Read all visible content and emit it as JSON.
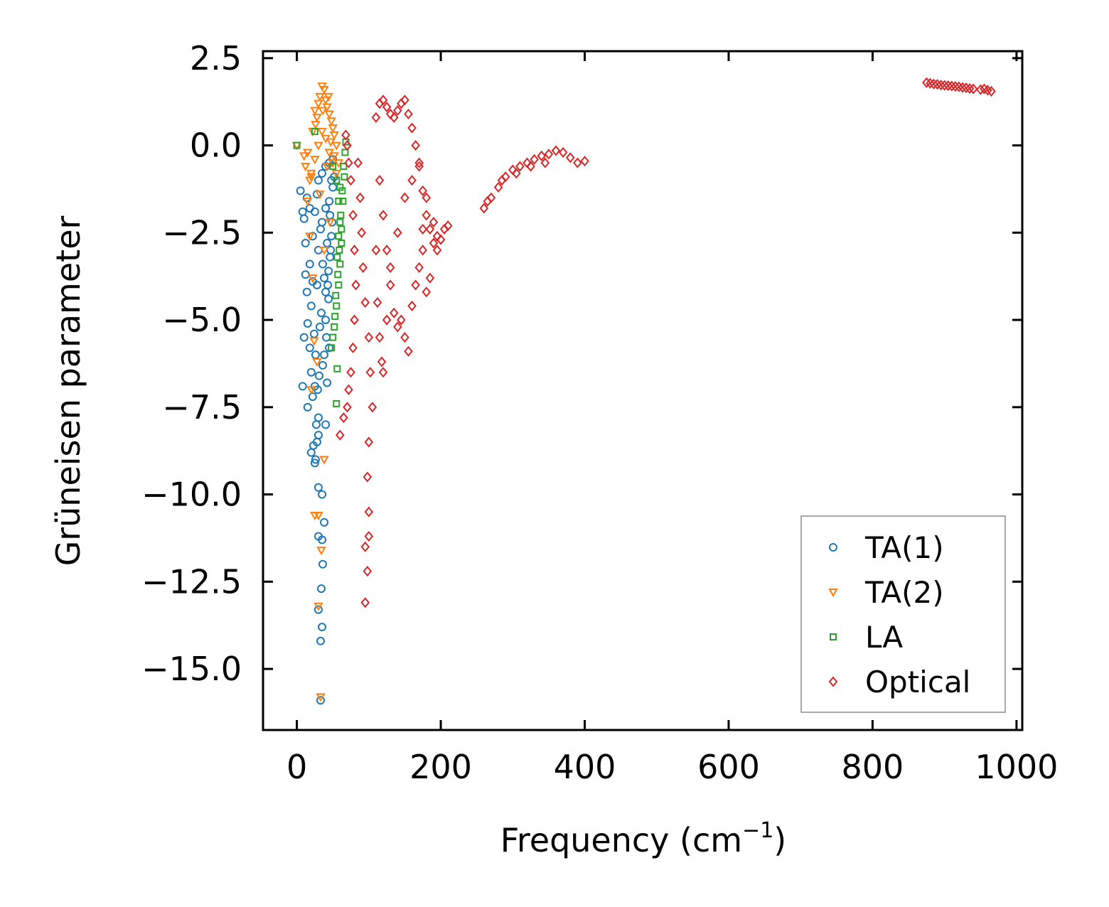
{
  "chart_data": {
    "type": "scatter",
    "title": "",
    "xlabel": "Frequency (cm",
    "xlabel_sup": "−1",
    "xlabel_end": ")",
    "ylabel": "Grüneisen parameter",
    "xlim": [
      -47,
      1008
    ],
    "ylim": [
      -16.75,
      2.7
    ],
    "xticks": [
      0,
      200,
      400,
      600,
      800,
      1000
    ],
    "xtick_labels": [
      "0",
      "200",
      "400",
      "600",
      "800",
      "1000"
    ],
    "yticks": [
      2.5,
      0,
      -2.5,
      -5,
      -7.5,
      -10,
      -12.5,
      -15
    ],
    "ytick_labels": [
      "2.5",
      "0.0",
      "−2.5",
      "−5.0",
      "−7.5",
      "−10.0",
      "−12.5",
      "−15.0"
    ],
    "legend_position": "lower-right",
    "series": [
      {
        "name": "TA(1)",
        "marker": "circle",
        "color": "#1f77b4",
        "points": [
          [
            5,
            -1.3
          ],
          [
            8,
            -1.9
          ],
          [
            10,
            -2.1
          ],
          [
            12,
            -2.8
          ],
          [
            12,
            -3.7
          ],
          [
            14,
            -4.2
          ],
          [
            15,
            -5.1
          ],
          [
            10,
            -5.5
          ],
          [
            8,
            -6.9
          ],
          [
            18,
            -5.8
          ],
          [
            20,
            -6.5
          ],
          [
            15,
            -7.5
          ],
          [
            22,
            -7.2
          ],
          [
            20,
            -8.8
          ],
          [
            25,
            -9.1
          ],
          [
            28,
            -8.5
          ],
          [
            30,
            -9.8
          ],
          [
            35,
            -10.0
          ],
          [
            38,
            -10.8
          ],
          [
            30,
            -11.2
          ],
          [
            35,
            -11.3
          ],
          [
            36,
            -12.0
          ],
          [
            34,
            -12.7
          ],
          [
            30,
            -13.3
          ],
          [
            35,
            -13.8
          ],
          [
            33,
            -14.2
          ],
          [
            33,
            -15.9
          ],
          [
            40,
            -8.0
          ],
          [
            30,
            -8.3
          ],
          [
            25,
            -6.9
          ],
          [
            20,
            -4.6
          ],
          [
            18,
            -3.4
          ],
          [
            22,
            -2.6
          ],
          [
            25,
            -1.9
          ],
          [
            28,
            -1.4
          ],
          [
            30,
            -1.0
          ],
          [
            35,
            -0.8
          ],
          [
            40,
            -0.6
          ],
          [
            45,
            -0.5
          ],
          [
            50,
            -0.4
          ],
          [
            30,
            -3.0
          ],
          [
            35,
            -2.2
          ],
          [
            40,
            -1.8
          ],
          [
            42,
            -2.8
          ],
          [
            45,
            -1.6
          ],
          [
            38,
            -3.8
          ],
          [
            32,
            -5.2
          ],
          [
            28,
            -4.0
          ],
          [
            26,
            -6.0
          ],
          [
            24,
            -5.4
          ],
          [
            36,
            -6.3
          ],
          [
            40,
            -5.0
          ],
          [
            44,
            -4.4
          ],
          [
            46,
            -3.2
          ],
          [
            48,
            -2.6
          ],
          [
            34,
            -4.8
          ],
          [
            22,
            -3.9
          ],
          [
            18,
            -1.8
          ],
          [
            14,
            -1.5
          ],
          [
            42,
            -6.8
          ],
          [
            30,
            -7.8
          ],
          [
            27,
            -8.0
          ],
          [
            45,
            -5.8
          ],
          [
            50,
            -1.2
          ],
          [
            52,
            -0.9
          ],
          [
            48,
            -1.0
          ],
          [
            46,
            -2.0
          ],
          [
            44,
            -3.6
          ],
          [
            40,
            -4.2
          ],
          [
            36,
            -3.4
          ],
          [
            33,
            -2.4
          ],
          [
            31,
            -6.6
          ],
          [
            29,
            -7.0
          ],
          [
            23,
            -8.6
          ],
          [
            26,
            -9.0
          ],
          [
            38,
            -6.0
          ],
          [
            41,
            -5.5
          ],
          [
            43,
            -4.0
          ],
          [
            47,
            -3.0
          ],
          [
            49,
            -2.2
          ]
        ]
      },
      {
        "name": "TA(2)",
        "marker": "triangle-down",
        "color": "#ff7f0e",
        "points": [
          [
            0,
            0.0
          ],
          [
            10,
            -0.3
          ],
          [
            12,
            -0.6
          ],
          [
            15,
            -0.2
          ],
          [
            18,
            -1.0
          ],
          [
            20,
            -0.8
          ],
          [
            22,
            0.4
          ],
          [
            25,
            1.0
          ],
          [
            28,
            0.8
          ],
          [
            30,
            1.2
          ],
          [
            32,
            1.4
          ],
          [
            35,
            1.7
          ],
          [
            38,
            1.6
          ],
          [
            40,
            1.3
          ],
          [
            42,
            1.1
          ],
          [
            45,
            0.9
          ],
          [
            48,
            0.7
          ],
          [
            50,
            0.5
          ],
          [
            52,
            0.3
          ],
          [
            55,
            0.0
          ],
          [
            35,
            0.4
          ],
          [
            40,
            0.2
          ],
          [
            45,
            -0.2
          ],
          [
            50,
            -0.5
          ],
          [
            30,
            0.0
          ],
          [
            25,
            -0.4
          ],
          [
            20,
            -0.9
          ],
          [
            15,
            -1.6
          ],
          [
            18,
            -2.6
          ],
          [
            22,
            -3.8
          ],
          [
            28,
            -6.2
          ],
          [
            30,
            -10.6
          ],
          [
            34,
            -11.6
          ],
          [
            30,
            -13.2
          ],
          [
            33,
            -15.8
          ],
          [
            25,
            -10.6
          ],
          [
            38,
            -9.0
          ],
          [
            20,
            -7.0
          ],
          [
            42,
            -0.6
          ],
          [
            47,
            0.1
          ],
          [
            52,
            -0.3
          ],
          [
            55,
            -0.8
          ],
          [
            58,
            -0.5
          ],
          [
            36,
            1.0
          ],
          [
            44,
            1.4
          ],
          [
            26,
            0.6
          ],
          [
            32,
            -1.4
          ],
          [
            46,
            -2.2
          ],
          [
            38,
            -3.0
          ],
          [
            24,
            -5.6
          ]
        ]
      },
      {
        "name": "LA",
        "marker": "square",
        "color": "#2ca02c",
        "points": [
          [
            0,
            0.0
          ],
          [
            25,
            0.4
          ],
          [
            50,
            -0.6
          ],
          [
            55,
            -1.0
          ],
          [
            58,
            -1.6
          ],
          [
            60,
            -2.2
          ],
          [
            62,
            -2.8
          ],
          [
            60,
            -3.4
          ],
          [
            58,
            -4.0
          ],
          [
            55,
            -4.6
          ],
          [
            52,
            -5.2
          ],
          [
            50,
            -5.5
          ],
          [
            55,
            -7.4
          ],
          [
            65,
            -0.6
          ],
          [
            67,
            -0.2
          ],
          [
            68,
            0.1
          ],
          [
            63,
            -1.3
          ],
          [
            61,
            -2.0
          ],
          [
            59,
            -3.0
          ],
          [
            57,
            -3.7
          ],
          [
            54,
            -4.3
          ],
          [
            53,
            -4.9
          ],
          [
            66,
            -0.9
          ],
          [
            64,
            -1.6
          ],
          [
            62,
            -2.4
          ],
          [
            48,
            -5.8
          ],
          [
            56,
            -6.4
          ],
          [
            60,
            -1.2
          ],
          [
            58,
            -2.6
          ],
          [
            56,
            -3.2
          ]
        ]
      },
      {
        "name": "Optical",
        "marker": "diamond",
        "color": "#d62728",
        "points": [
          [
            68,
            0.3
          ],
          [
            70,
            0.0
          ],
          [
            72,
            -0.5
          ],
          [
            75,
            -1.0
          ],
          [
            78,
            -2.0
          ],
          [
            80,
            -3.0
          ],
          [
            82,
            -4.0
          ],
          [
            80,
            -5.0
          ],
          [
            78,
            -5.8
          ],
          [
            75,
            -6.5
          ],
          [
            72,
            -7.0
          ],
          [
            70,
            -7.5
          ],
          [
            65,
            -7.8
          ],
          [
            60,
            -8.3
          ],
          [
            85,
            -0.5
          ],
          [
            88,
            -1.5
          ],
          [
            90,
            -2.5
          ],
          [
            92,
            -3.5
          ],
          [
            95,
            -4.5
          ],
          [
            100,
            -5.5
          ],
          [
            102,
            -6.5
          ],
          [
            105,
            -7.5
          ],
          [
            100,
            -8.5
          ],
          [
            98,
            -9.5
          ],
          [
            100,
            -10.5
          ],
          [
            100,
            -11.2
          ],
          [
            95,
            -11.5
          ],
          [
            98,
            -12.2
          ],
          [
            95,
            -13.1
          ],
          [
            110,
            0.8
          ],
          [
            115,
            1.2
          ],
          [
            120,
            1.3
          ],
          [
            125,
            1.1
          ],
          [
            130,
            0.9
          ],
          [
            135,
            0.8
          ],
          [
            140,
            1.0
          ],
          [
            145,
            1.2
          ],
          [
            150,
            1.3
          ],
          [
            155,
            0.9
          ],
          [
            160,
            0.5
          ],
          [
            165,
            0.0
          ],
          [
            170,
            -0.6
          ],
          [
            175,
            -1.3
          ],
          [
            180,
            -2.0
          ],
          [
            185,
            -2.4
          ],
          [
            190,
            -2.8
          ],
          [
            195,
            -3.0
          ],
          [
            200,
            -2.7
          ],
          [
            205,
            -2.4
          ],
          [
            210,
            -2.3
          ],
          [
            115,
            -1.0
          ],
          [
            120,
            -2.0
          ],
          [
            125,
            -3.0
          ],
          [
            130,
            -4.0
          ],
          [
            135,
            -4.8
          ],
          [
            140,
            -5.2
          ],
          [
            145,
            -5.0
          ],
          [
            150,
            -5.5
          ],
          [
            155,
            -5.9
          ],
          [
            160,
            -4.6
          ],
          [
            165,
            -4.0
          ],
          [
            170,
            -3.5
          ],
          [
            175,
            -3.0
          ],
          [
            180,
            -4.2
          ],
          [
            185,
            -3.8
          ],
          [
            110,
            -3.0
          ],
          [
            112,
            -4.5
          ],
          [
            115,
            -5.5
          ],
          [
            118,
            -6.2
          ],
          [
            120,
            -6.5
          ],
          [
            125,
            -5.0
          ],
          [
            130,
            -3.5
          ],
          [
            140,
            -2.5
          ],
          [
            150,
            -1.5
          ],
          [
            160,
            -1.0
          ],
          [
            170,
            -0.5
          ],
          [
            180,
            -1.5
          ],
          [
            190,
            -2.2
          ],
          [
            195,
            -2.6
          ],
          [
            175,
            -2.4
          ],
          [
            260,
            -1.8
          ],
          [
            270,
            -1.5
          ],
          [
            280,
            -1.2
          ],
          [
            290,
            -0.9
          ],
          [
            300,
            -0.7
          ],
          [
            310,
            -0.6
          ],
          [
            320,
            -0.5
          ],
          [
            330,
            -0.4
          ],
          [
            340,
            -0.3
          ],
          [
            350,
            -0.25
          ],
          [
            360,
            -0.15
          ],
          [
            370,
            -0.2
          ],
          [
            380,
            -0.35
          ],
          [
            390,
            -0.5
          ],
          [
            400,
            -0.45
          ],
          [
            265,
            -1.6
          ],
          [
            285,
            -1.0
          ],
          [
            305,
            -0.8
          ],
          [
            325,
            -0.6
          ],
          [
            345,
            -0.5
          ],
          [
            875,
            1.8
          ],
          [
            880,
            1.78
          ],
          [
            890,
            1.75
          ],
          [
            900,
            1.72
          ],
          [
            910,
            1.7
          ],
          [
            920,
            1.68
          ],
          [
            930,
            1.65
          ],
          [
            940,
            1.62
          ],
          [
            950,
            1.6
          ],
          [
            960,
            1.58
          ],
          [
            965,
            1.55
          ],
          [
            885,
            1.76
          ],
          [
            895,
            1.73
          ],
          [
            905,
            1.71
          ],
          [
            915,
            1.69
          ],
          [
            925,
            1.66
          ],
          [
            935,
            1.63
          ],
          [
            955,
            1.62
          ]
        ]
      }
    ]
  }
}
